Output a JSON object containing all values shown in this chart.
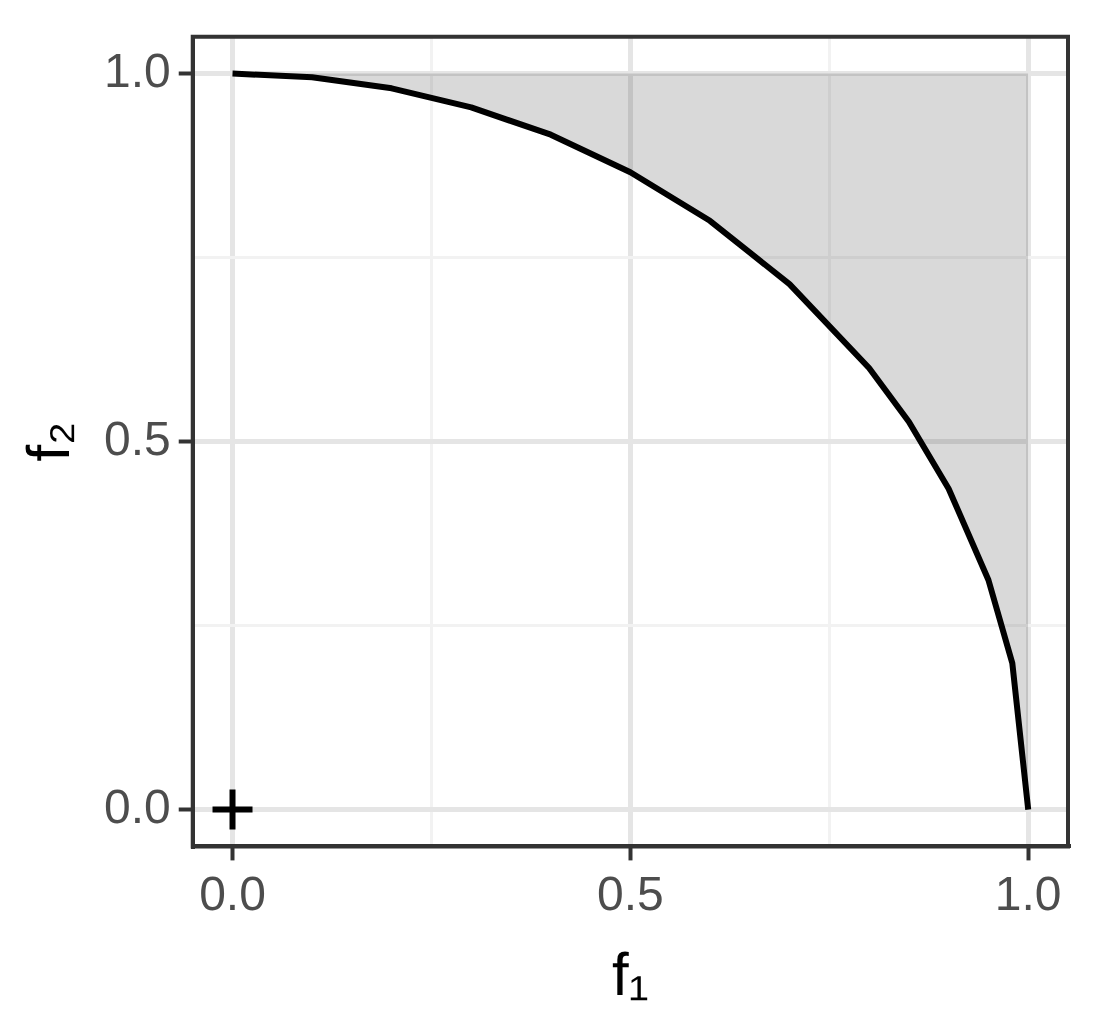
{
  "chart_data": {
    "type": "line",
    "xlabel": "f₁",
    "ylabel": "f₂",
    "xlim": [
      -0.05,
      1.05
    ],
    "ylim": [
      -0.05,
      1.05
    ],
    "xticks": [
      {
        "value": 0,
        "label": "0.0"
      },
      {
        "value": 0.25,
        "label": null
      },
      {
        "value": 0.5,
        "label": "0.5"
      },
      {
        "value": 0.75,
        "label": null
      },
      {
        "value": 1,
        "label": "1.0"
      }
    ],
    "yticks": [
      {
        "value": 0,
        "label": "0.0"
      },
      {
        "value": 0.25,
        "label": null
      },
      {
        "value": 0.5,
        "label": "0.5"
      },
      {
        "value": 0.75,
        "label": null
      },
      {
        "value": 1,
        "label": "1.0"
      }
    ],
    "grid": true,
    "legend": false,
    "series": [
      {
        "color": "#000000",
        "marker": "none",
        "line_style": "solid",
        "x": [
          0,
          0.1,
          0.2,
          0.3,
          0.4,
          0.5,
          0.6,
          0.7,
          0.8,
          0.85,
          0.9,
          0.95,
          0.98,
          1
        ],
        "values": [
          1,
          0.995,
          0.98,
          0.954,
          0.917,
          0.866,
          0.8,
          0.714,
          0.6,
          0.527,
          0.436,
          0.312,
          0.199,
          0
        ],
        "lower": [
          1,
          0.995,
          0.98,
          0.954,
          0.917,
          0.866,
          0.8,
          0.714,
          0.6,
          0.527,
          0.436,
          0.312,
          0.199,
          0
        ],
        "upper": [
          1,
          1,
          1,
          1,
          1,
          1,
          1,
          1,
          1,
          1,
          1,
          1,
          1,
          1
        ]
      },
      {
        "type": "scatter",
        "color": "#000000",
        "marker": "cross",
        "x": [
          0
        ],
        "values": [
          0
        ]
      }
    ]
  }
}
